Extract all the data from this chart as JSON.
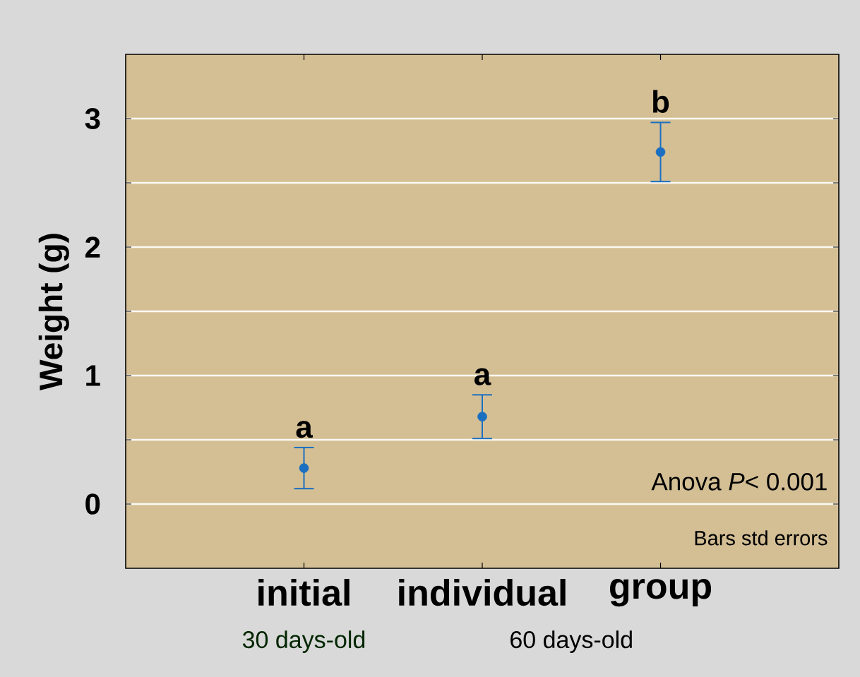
{
  "chart_data": {
    "type": "scatter",
    "ylabel": "Weight (g)",
    "categories": [
      "initial",
      "individual",
      "group"
    ],
    "values": [
      0.28,
      0.68,
      2.74
    ],
    "errors": [
      0.16,
      0.17,
      0.23
    ],
    "color": "#1a6fc0",
    "ylim": [
      -0.5,
      3.5
    ],
    "yticks": [
      0,
      {
        "value": 0.5,
        "label": null
      },
      1,
      {
        "value": 1.5,
        "label": null
      },
      2,
      {
        "value": 2.5,
        "label": null
      },
      3
    ],
    "grid": "y",
    "annotations": [
      "30 days-old",
      "60 days-old",
      "Anova *P*< 0.001",
      "Bars std errors",
      "a",
      "a",
      "b"
    ]
  }
}
